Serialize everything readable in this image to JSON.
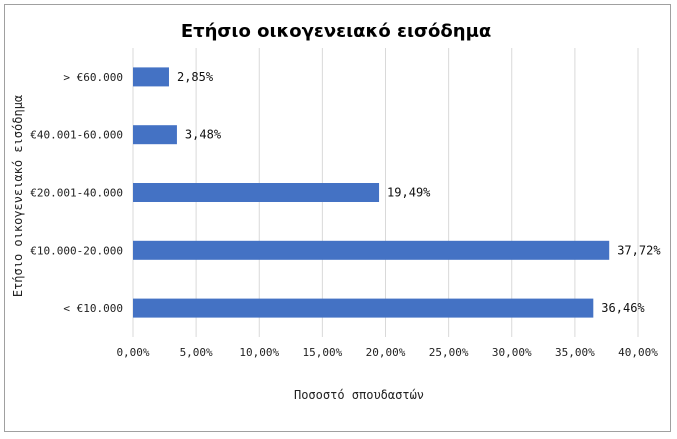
{
  "chart_data": {
    "type": "bar",
    "orientation": "horizontal",
    "title": "Ετήσιο οικογενειακό εισόδημα",
    "xlabel": "Ποσοστό σπουδαστών",
    "ylabel": "Ετήσιο οικογενειακό εισόδημα",
    "categories": [
      "< €10.000",
      "€10.000-20.000",
      "€20.001-40.000",
      "€40.001-60.000",
      "> €60.000"
    ],
    "values": [
      36.46,
      37.72,
      19.49,
      3.48,
      2.85
    ],
    "data_labels": [
      "36,46%",
      "37,72%",
      "19,49%",
      "3,48%",
      "2,85%"
    ],
    "xlim": [
      0,
      40
    ],
    "x_ticks": [
      "0,00%",
      "5,00%",
      "10,00%",
      "15,00%",
      "20,00%",
      "25,00%",
      "30,00%",
      "35,00%",
      "40,00%"
    ],
    "grid": "vertical",
    "bar_color": "#4472C4",
    "grid_color": "#d9d9d9"
  }
}
